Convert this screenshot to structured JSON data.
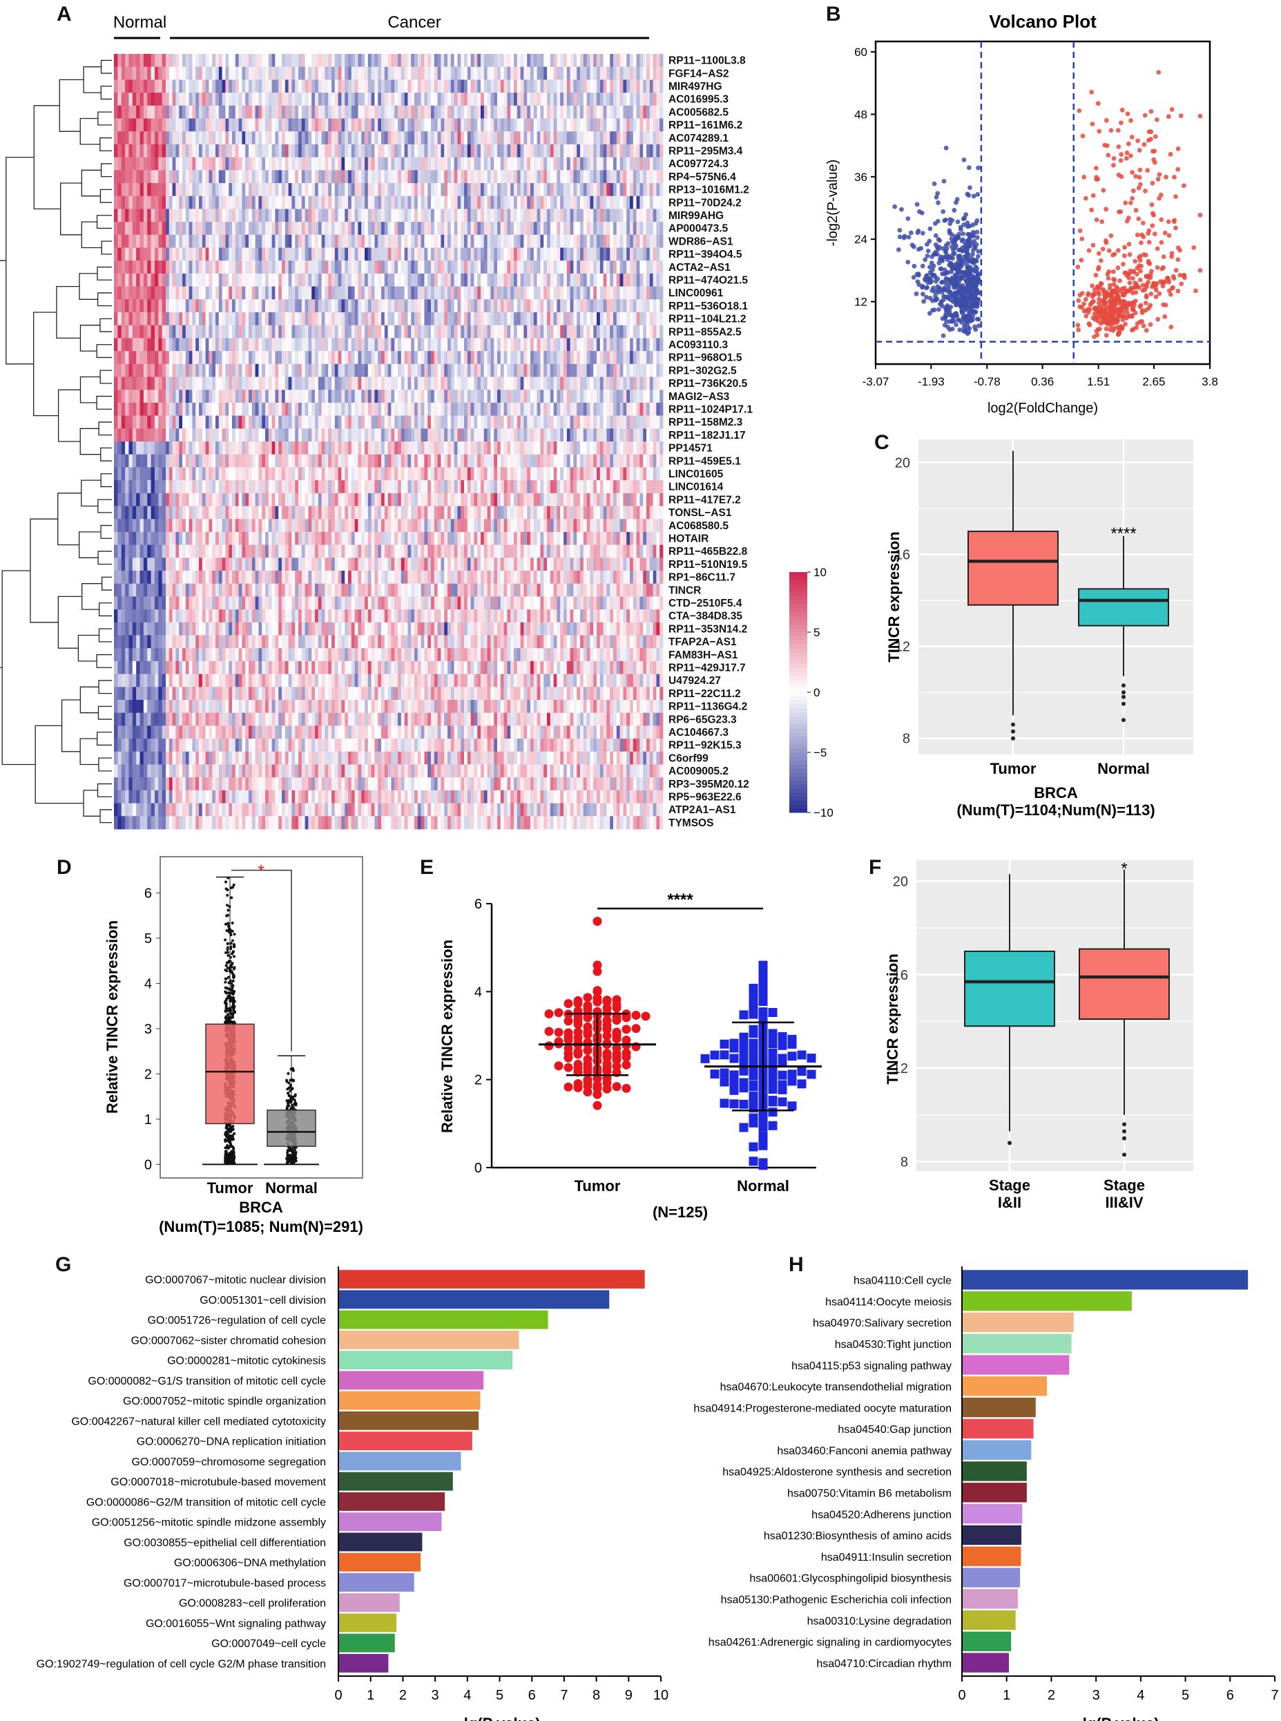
{
  "figure_panels": [
    "A",
    "B",
    "C",
    "D",
    "E",
    "F",
    "G",
    "H"
  ],
  "colors": {
    "red": "#e8262a",
    "blue": "#1f2bd6",
    "heat_high": "#b2182b",
    "heat_low": "#2b2c8c",
    "box_tumor": "#f8766d",
    "box_normal": "#35c2c2",
    "panel_bg": "#ebebeb"
  },
  "chart_data": [
    {
      "panel": "A",
      "type": "heatmap",
      "group_labels": [
        "Normal",
        "Cancer"
      ],
      "rows": [
        "RP11−1100L3.8",
        "FGF14−AS2",
        "MIR497HG",
        "AC016995.3",
        "AC005682.5",
        "RP11−161M6.2",
        "AC074289.1",
        "RP11−295M3.4",
        "AC097724.3",
        "RP4−575N6.4",
        "RP13−1016M1.2",
        "RP11−70D24.2",
        "MIR99AHG",
        "AP000473.5",
        "WDR86−AS1",
        "RP11−394O4.5",
        "ACTA2−AS1",
        "RP11−474O21.5",
        "LINC00961",
        "RP11−536O18.1",
        "RP11−104L21.2",
        "RP11−855A2.5",
        "AC093110.3",
        "RP11−968O1.5",
        "RP1−302G2.5",
        "RP11−736K20.5",
        "MAGI2−AS3",
        "RP11−1024P17.1",
        "RP11−158M2.3",
        "RP11−182J1.17",
        "PP14571",
        "RP11−459E5.1",
        "LINC01605",
        "LINC01614",
        "RP11−417E7.2",
        "TONSL−AS1",
        "AC068580.5",
        "HOTAIR",
        "RP11−465B22.8",
        "RP11−510N19.5",
        "RP1−86C11.7",
        "TINCR",
        "CTD−2510F5.4",
        "CTA−384D8.35",
        "RP11−353N14.2",
        "TFAP2A−AS1",
        "FAM83H−AS1",
        "RP11−429J17.7",
        "U47924.27",
        "RP11−22C11.2",
        "RP11−1136G4.2",
        "RP6−65G23.3",
        "AC104667.3",
        "RP11−92K15.3",
        "C6orf99",
        "AC009005.2",
        "RP3−395M20.12",
        "RP5−963E22.6",
        "ATP2A1−AS1",
        "TYMSOS"
      ],
      "colorbar_ticks": [
        "10",
        "5",
        "0",
        "−5",
        "−10"
      ],
      "colorbar_values": [
        10,
        5,
        0,
        -5,
        -10
      ],
      "n_up_in_normal": 30
    },
    {
      "panel": "B",
      "type": "scatter",
      "title": "Volcano Plot",
      "xlabel": "log2(FoldChange)",
      "ylabel": "-log2(P-value)",
      "xticks": [
        "-3.07",
        "-1.93",
        "-0.78",
        "0.36",
        "1.51",
        "2.65",
        "3.8"
      ],
      "xtick_values": [
        -3.07,
        -1.93,
        -0.78,
        0.36,
        1.51,
        2.65,
        3.8
      ],
      "yticks": [
        "12",
        "24",
        "36",
        "48",
        "60"
      ],
      "ytick_values": [
        12,
        24,
        36,
        48,
        60
      ],
      "xlim": [
        -3.07,
        3.8
      ],
      "ylim": [
        0,
        62
      ],
      "thresholds": {
        "x": [
          -0.9,
          1.0
        ],
        "y": 4.3
      }
    },
    {
      "panel": "C",
      "type": "box",
      "xlabel": "BRCA",
      "subtitle": "(Num(T)=1104;Num(N)=113)",
      "ylabel": "TINCR expression",
      "categories": [
        "Tumor",
        "Normal"
      ],
      "yticks": [
        "8",
        "12",
        "16",
        "20"
      ],
      "ytick_values": [
        8,
        12,
        16,
        20
      ],
      "ylim": [
        7.3,
        21
      ],
      "boxes": [
        {
          "name": "Tumor",
          "q1": 13.8,
          "median": 15.7,
          "q3": 17.0,
          "wlo": 9.0,
          "whi": 20.5,
          "outliers": [
            8.6,
            8.3,
            8.0
          ]
        },
        {
          "name": "Normal",
          "q1": 12.9,
          "median": 14.0,
          "q3": 14.5,
          "wlo": 10.7,
          "whi": 16.8,
          "outliers": [
            10.3,
            10.0,
            9.8,
            9.5,
            8.8
          ]
        }
      ],
      "significance": "****"
    },
    {
      "panel": "D",
      "type": "box",
      "xlabel": "BRCA",
      "subtitle": "(Num(T)=1085; Num(N)=291)",
      "ylabel": "Relative TINCR expression",
      "categories": [
        "Tumor",
        "Normal"
      ],
      "yticks": [
        "0",
        "1",
        "2",
        "3",
        "4",
        "5",
        "6"
      ],
      "ytick_values": [
        0,
        1,
        2,
        3,
        4,
        5,
        6
      ],
      "ylim": [
        -0.3,
        6.8
      ],
      "boxes": [
        {
          "name": "Tumor",
          "q1": 0.9,
          "median": 2.05,
          "q3": 3.1,
          "wlo": 0,
          "whi": 6.35
        },
        {
          "name": "Normal",
          "q1": 0.4,
          "median": 0.72,
          "q3": 1.2,
          "wlo": 0,
          "whi": 2.4
        }
      ],
      "significance": "*"
    },
    {
      "panel": "E",
      "type": "scatter",
      "xlabel": "(N=125)",
      "ylabel": "Relative TINCR expression",
      "categories": [
        "Tumor",
        "Normal"
      ],
      "yticks": [
        "0",
        "2",
        "4",
        "6"
      ],
      "ytick_values": [
        0,
        2,
        4,
        6
      ],
      "ylim": [
        0,
        6
      ],
      "groups": [
        {
          "name": "Tumor",
          "mean": 2.8,
          "sd": 0.7,
          "min": 1.4,
          "max": 5.6
        },
        {
          "name": "Normal",
          "mean": 2.3,
          "sd": 1.0,
          "min": 0.05,
          "max": 4.6
        }
      ],
      "significance": "****"
    },
    {
      "panel": "F",
      "type": "box",
      "ylabel": "TINCR expression",
      "categories": [
        "Stage\nI&II",
        "Stage\nIII&IV"
      ],
      "yticks": [
        "8",
        "12",
        "16",
        "20"
      ],
      "ytick_values": [
        8,
        12,
        16,
        20
      ],
      "ylim": [
        7.6,
        20.9
      ],
      "boxes": [
        {
          "name": "Stage I&II",
          "q1": 13.8,
          "median": 15.7,
          "q3": 17.0,
          "wlo": 9.3,
          "whi": 20.3,
          "outliers": [
            8.8
          ]
        },
        {
          "name": "Stage III&IV",
          "q1": 14.1,
          "median": 15.9,
          "q3": 17.1,
          "wlo": 10.0,
          "whi": 20.5,
          "outliers": [
            9.6,
            9.3,
            9.0,
            8.3
          ]
        }
      ],
      "significance": "*"
    },
    {
      "panel": "G",
      "type": "bar",
      "xlabel": "-lg(P value)",
      "xticks": [
        "0",
        "1",
        "2",
        "3",
        "4",
        "5",
        "6",
        "7",
        "8",
        "9",
        "10"
      ],
      "xtick_values": [
        0,
        1,
        2,
        3,
        4,
        5,
        6,
        7,
        8,
        9,
        10
      ],
      "xlim": [
        0,
        10
      ],
      "categories": [
        "GO:0007067~mitotic nuclear division",
        "GO:0051301~cell division",
        "GO:0051726~regulation of cell cycle",
        "GO:0007062~sister chromatid cohesion",
        "GO:0000281~mitotic cytokinesis",
        "GO:0000082~G1/S transition of mitotic cell cycle",
        "GO:0007052~mitotic spindle organization",
        "GO:0042267~natural killer cell mediated cytotoxicity",
        "GO:0006270~DNA replication initiation",
        "GO:0007059~chromosome segregation",
        "GO:0007018~microtubule-based movement",
        "GO:0000086~G2/M transition of mitotic cell cycle",
        "GO:0051256~mitotic spindle midzone assembly",
        "GO:0030855~epithelial cell differentiation",
        "GO:0006306~DNA methylation",
        "GO:0007017~microtubule-based process",
        "GO:0008283~cell proliferation",
        "GO:0016055~Wnt signaling pathway",
        "GO:0007049~cell cycle",
        "GO:1902749~regulation of cell cycle G2/M phase transition"
      ],
      "values": [
        9.5,
        8.4,
        6.5,
        5.6,
        5.4,
        4.5,
        4.4,
        4.35,
        4.15,
        3.8,
        3.55,
        3.3,
        3.2,
        2.6,
        2.55,
        2.35,
        1.9,
        1.8,
        1.75,
        1.55
      ],
      "bar_colors": [
        "#e03a2e",
        "#2b4aa3",
        "#79c11b",
        "#f3b98a",
        "#8ddfb6",
        "#d068c4",
        "#f6a04f",
        "#8b5a2b",
        "#ea4a54",
        "#7fa3db",
        "#2f5a34",
        "#8e2a3a",
        "#c77fd6",
        "#2c2b52",
        "#ee6a2a",
        "#8a8cd6",
        "#d399c7",
        "#b9b82c",
        "#2e9c4d",
        "#7a2a8e"
      ]
    },
    {
      "panel": "H",
      "type": "bar",
      "xlabel": "-lg(P value)",
      "xticks": [
        "0",
        "1",
        "2",
        "3",
        "4",
        "5",
        "6",
        "7"
      ],
      "xtick_values": [
        0,
        1,
        2,
        3,
        4,
        5,
        6,
        7
      ],
      "xlim": [
        0,
        7
      ],
      "categories": [
        "hsa04110:Cell cycle",
        "hsa04114:Oocyte meiosis",
        "hsa04970:Salivary secretion",
        "hsa04530:Tight junction",
        "hsa04115:p53 signaling pathway",
        "hsa04670:Leukocyte transendothelial migration",
        "hsa04914:Progesterone-mediated oocyte maturation",
        "hsa04540:Gap junction",
        "hsa03460:Fanconi anemia pathway",
        "hsa04925:Aldosterone synthesis and secretion",
        "hsa00750:Vitamin B6 metabolism",
        "hsa04520:Adherens junction",
        "hsa01230:Biosynthesis of amino acids",
        "hsa04911:Insulin secretion",
        "hsa00601:Glycosphingolipid biosynthesis",
        "hsa05130:Pathogenic Escherichia coli infection",
        "hsa00310:Lysine degradation",
        "hsa04261:Adrenergic signaling in cardiomyocytes",
        "hsa04710:Circadian rhythm"
      ],
      "values": [
        6.4,
        3.8,
        2.5,
        2.45,
        2.4,
        1.9,
        1.65,
        1.6,
        1.55,
        1.45,
        1.45,
        1.35,
        1.33,
        1.32,
        1.3,
        1.25,
        1.2,
        1.1,
        1.05
      ],
      "bar_colors": [
        "#2d49a6",
        "#7dc31e",
        "#f1b98c",
        "#99e0b9",
        "#d76bd0",
        "#f6a04f",
        "#8b5a2b",
        "#ea4a54",
        "#7ea7df",
        "#2b5a30",
        "#8c2436",
        "#c98adf",
        "#2a2a55",
        "#ee6a2a",
        "#8a8cd8",
        "#d59bcb",
        "#b7b82d",
        "#2f9e52",
        "#80268f"
      ]
    }
  ]
}
